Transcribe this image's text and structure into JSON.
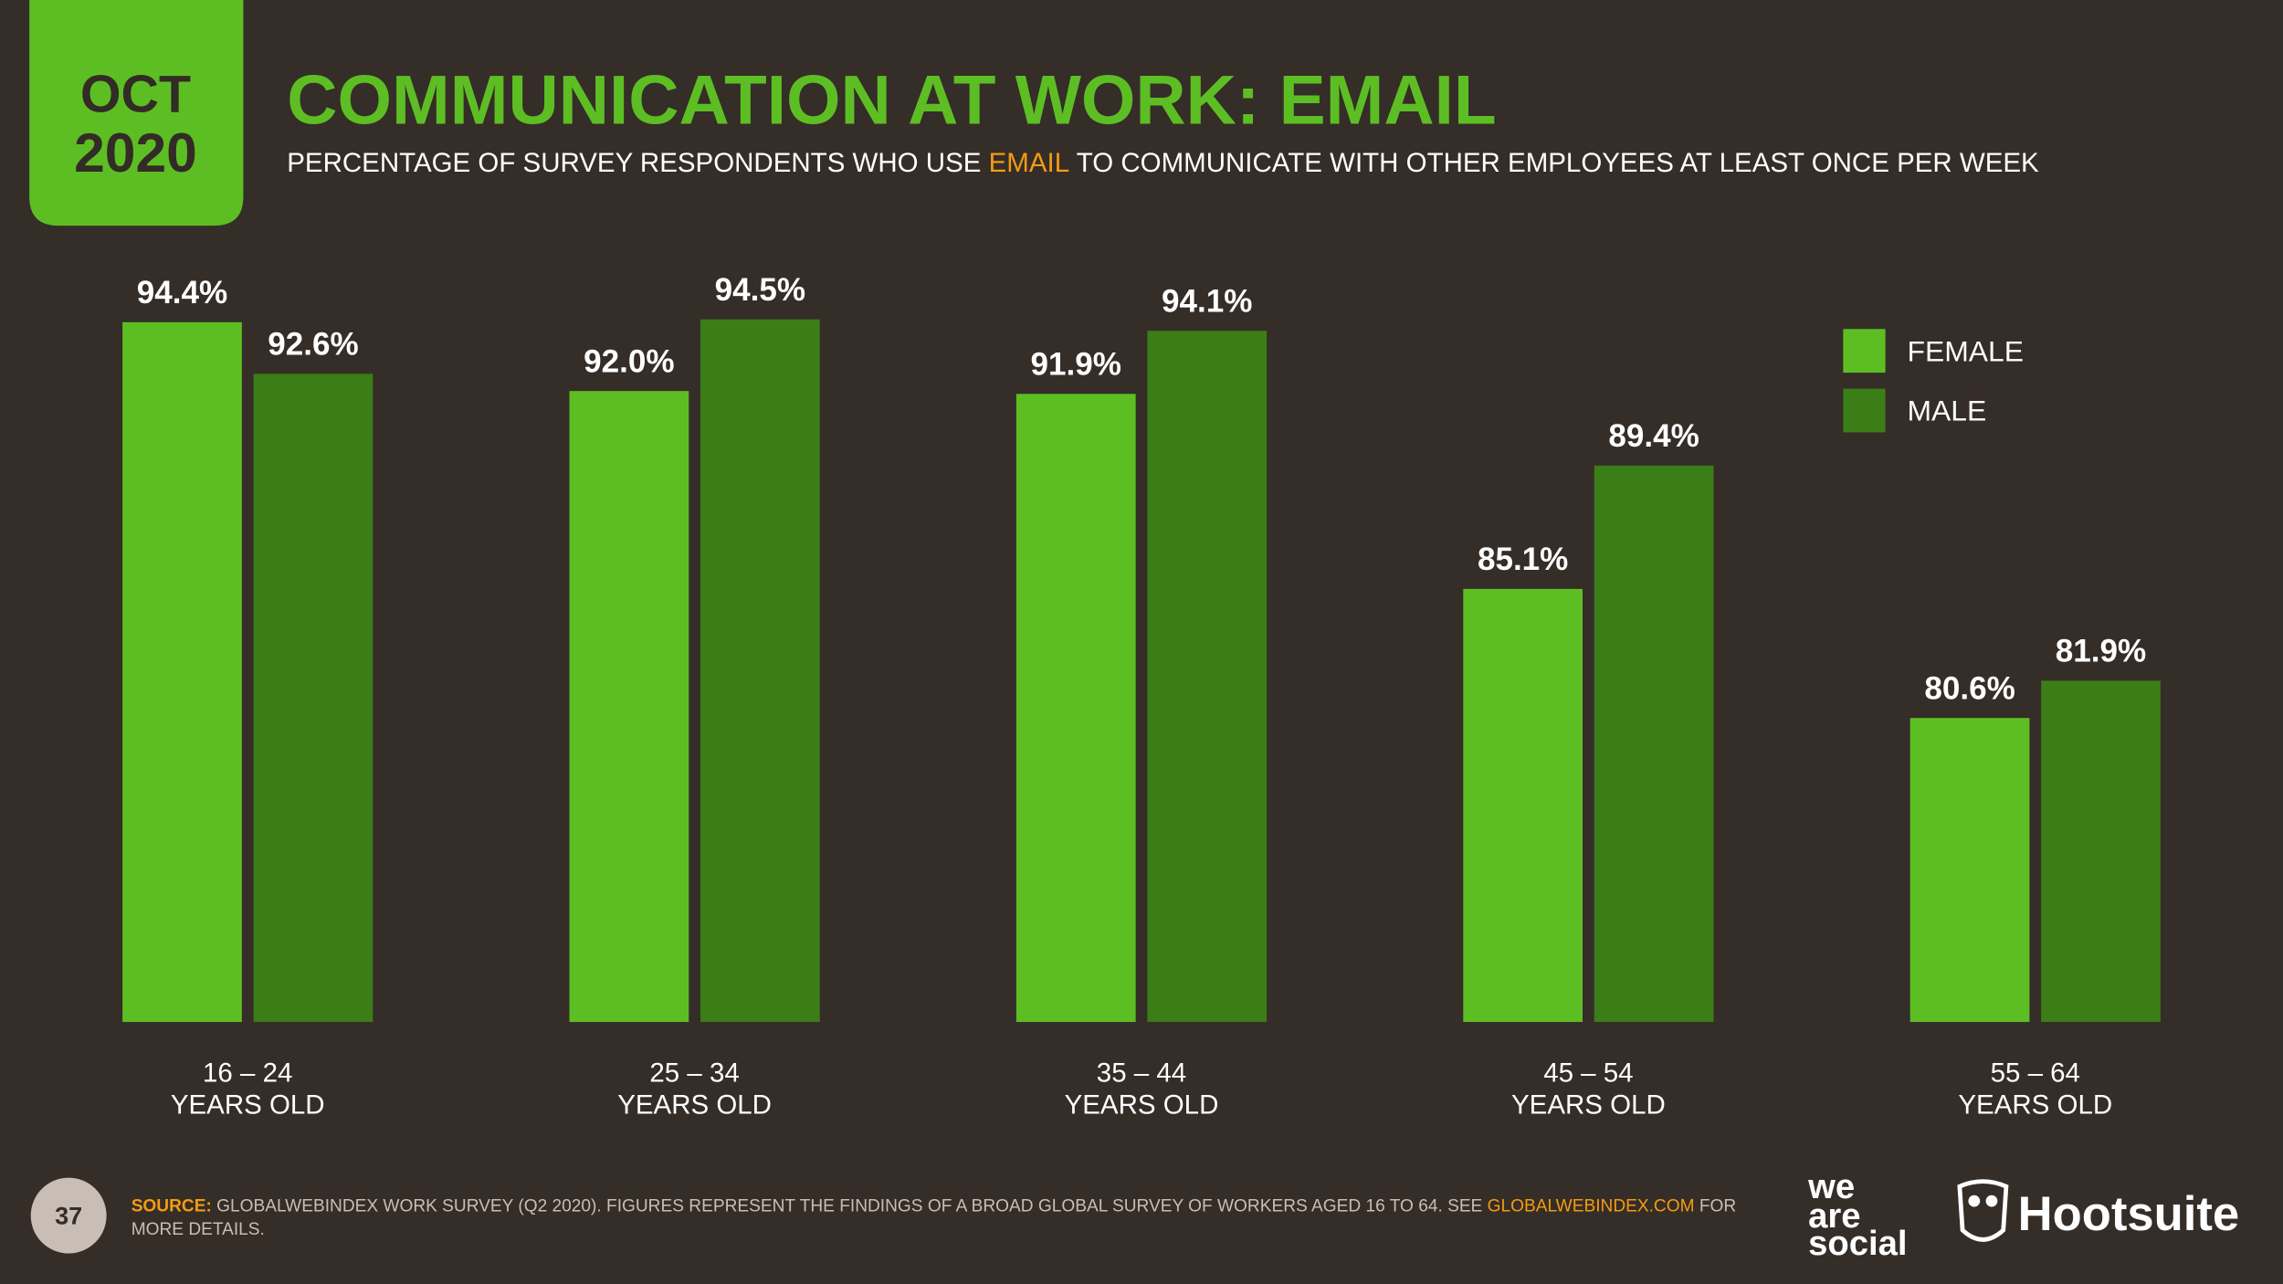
{
  "header": {
    "month": "OCT",
    "year": "2020"
  },
  "chart_data": {
    "type": "bar",
    "title": "COMMUNICATION AT WORK: EMAIL",
    "subtitle": {
      "before": "PERCENTAGE OF SURVEY RESPONDENTS WHO USE ",
      "highlight": "EMAIL",
      "after": " TO COMMUNICATE WITH OTHER EMPLOYEES AT LEAST ONCE PER WEEK"
    },
    "categories": [
      "16 – 24 YEARS OLD",
      "25 – 34 YEARS OLD",
      "35 – 44 YEARS OLD",
      "45 – 54 YEARS OLD",
      "55 – 64 YEARS OLD"
    ],
    "series": [
      {
        "name": "FEMALE",
        "color": "#5dbe24",
        "values": [
          94.4,
          92.0,
          91.9,
          85.1,
          80.6
        ],
        "value_labels": [
          "94.4%",
          "92.0%",
          "91.9%",
          "85.1%",
          "80.6%"
        ]
      },
      {
        "name": "MALE",
        "color": "#3b7d17",
        "values": [
          92.6,
          94.5,
          94.1,
          89.4,
          81.9
        ],
        "value_labels": [
          "92.6%",
          "94.5%",
          "94.1%",
          "89.4%",
          "81.9%"
        ]
      }
    ],
    "ylim": [
      70,
      100
    ],
    "legend": "top-right"
  },
  "footer": {
    "page": "37",
    "source_label": "SOURCE:",
    "source_text": " GLOBALWEBINDEX WORK SURVEY (Q2 2020). FIGURES REPRESENT THE FINDINGS OF A BROAD GLOBAL SURVEY OF WORKERS AGED 16 TO 64. SEE ",
    "source_link": "GLOBALWEBINDEX.COM",
    "source_end": " FOR",
    "source_line2": "MORE DETAILS.",
    "logo_wearesocial": [
      "we",
      "are",
      "social"
    ],
    "logo_hootsuite": "Hootsuite"
  }
}
